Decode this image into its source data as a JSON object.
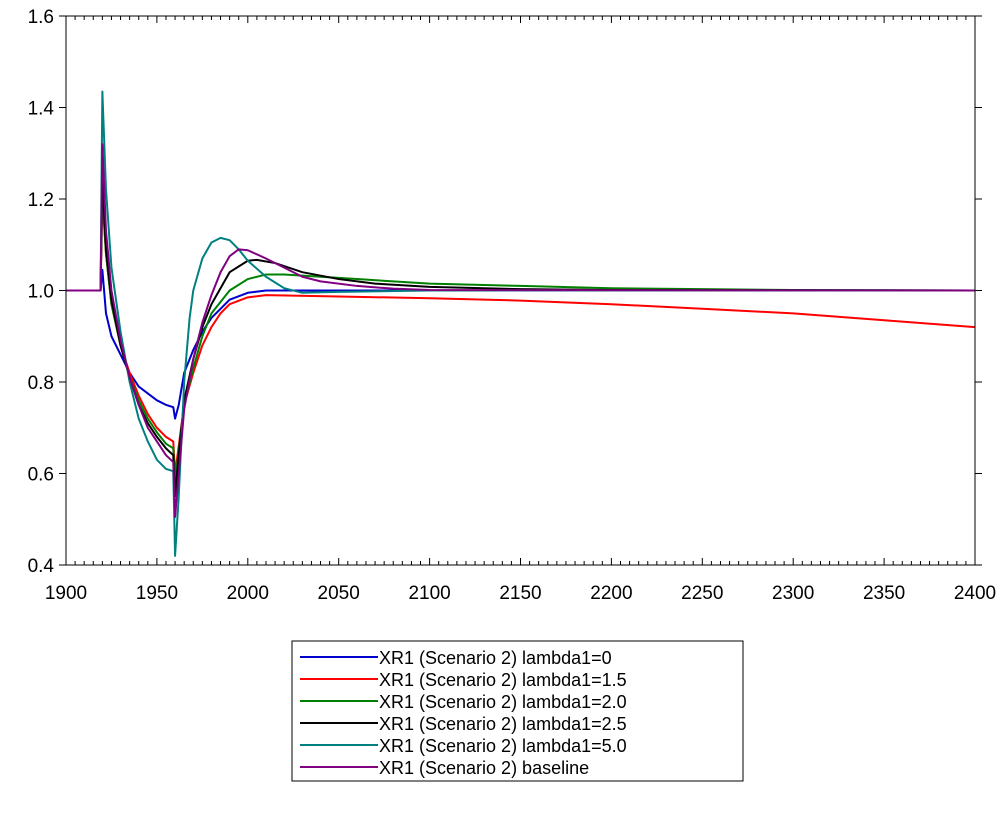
{
  "chart_data": {
    "type": "line",
    "title": "",
    "xlabel": "",
    "ylabel": "",
    "xlim": [
      1900,
      2400
    ],
    "ylim": [
      0.4,
      1.6
    ],
    "x_ticks": [
      "1900",
      "1950",
      "2000",
      "2050",
      "2100",
      "2150",
      "2200",
      "2250",
      "2300",
      "2350",
      "2400"
    ],
    "y_ticks": [
      "0.4",
      "0.6",
      "0.8",
      "1.0",
      "1.2",
      "1.4",
      "1.6"
    ],
    "x_minor_step": 5,
    "grid": false,
    "legend_position": "bottom-center",
    "series": [
      {
        "name": "XR1 (Scenario 2) lambda1=0",
        "color": "#0000cc",
        "points": [
          [
            1900,
            1.0
          ],
          [
            1919,
            1.0
          ],
          [
            1920,
            1.045
          ],
          [
            1922,
            0.95
          ],
          [
            1925,
            0.9
          ],
          [
            1930,
            0.86
          ],
          [
            1935,
            0.82
          ],
          [
            1940,
            0.79
          ],
          [
            1945,
            0.775
          ],
          [
            1950,
            0.76
          ],
          [
            1955,
            0.75
          ],
          [
            1959,
            0.745
          ],
          [
            1960,
            0.72
          ],
          [
            1962,
            0.75
          ],
          [
            1965,
            0.82
          ],
          [
            1970,
            0.87
          ],
          [
            1975,
            0.91
          ],
          [
            1980,
            0.94
          ],
          [
            1985,
            0.96
          ],
          [
            1990,
            0.98
          ],
          [
            2000,
            0.995
          ],
          [
            2010,
            1.0
          ],
          [
            2050,
            1.0
          ],
          [
            2100,
            1.0
          ],
          [
            2200,
            1.0
          ],
          [
            2300,
            1.0
          ],
          [
            2400,
            1.0
          ]
        ]
      },
      {
        "name": "XR1 (Scenario 2) lambda1=1.5",
        "color": "#ff0000",
        "points": [
          [
            1900,
            1.0
          ],
          [
            1919,
            1.0
          ],
          [
            1920,
            1.2
          ],
          [
            1922,
            1.08
          ],
          [
            1925,
            0.97
          ],
          [
            1930,
            0.88
          ],
          [
            1935,
            0.82
          ],
          [
            1940,
            0.77
          ],
          [
            1945,
            0.73
          ],
          [
            1950,
            0.7
          ],
          [
            1955,
            0.68
          ],
          [
            1959,
            0.67
          ],
          [
            1960,
            0.6
          ],
          [
            1962,
            0.66
          ],
          [
            1965,
            0.75
          ],
          [
            1970,
            0.82
          ],
          [
            1975,
            0.88
          ],
          [
            1980,
            0.92
          ],
          [
            1985,
            0.95
          ],
          [
            1990,
            0.97
          ],
          [
            2000,
            0.985
          ],
          [
            2010,
            0.99
          ],
          [
            2050,
            0.987
          ],
          [
            2100,
            0.983
          ],
          [
            2150,
            0.978
          ],
          [
            2200,
            0.97
          ],
          [
            2250,
            0.96
          ],
          [
            2300,
            0.95
          ],
          [
            2350,
            0.935
          ],
          [
            2400,
            0.92
          ]
        ]
      },
      {
        "name": "XR1 (Scenario 2) lambda1=2.0",
        "color": "#008000",
        "points": [
          [
            1900,
            1.0
          ],
          [
            1919,
            1.0
          ],
          [
            1920,
            1.22
          ],
          [
            1922,
            1.08
          ],
          [
            1925,
            0.97
          ],
          [
            1930,
            0.88
          ],
          [
            1935,
            0.81
          ],
          [
            1940,
            0.76
          ],
          [
            1945,
            0.72
          ],
          [
            1950,
            0.69
          ],
          [
            1955,
            0.665
          ],
          [
            1959,
            0.655
          ],
          [
            1960,
            0.58
          ],
          [
            1962,
            0.65
          ],
          [
            1965,
            0.75
          ],
          [
            1970,
            0.83
          ],
          [
            1975,
            0.9
          ],
          [
            1980,
            0.95
          ],
          [
            1990,
            1.0
          ],
          [
            2000,
            1.025
          ],
          [
            2010,
            1.035
          ],
          [
            2020,
            1.035
          ],
          [
            2040,
            1.03
          ],
          [
            2060,
            1.025
          ],
          [
            2080,
            1.02
          ],
          [
            2100,
            1.015
          ],
          [
            2150,
            1.01
          ],
          [
            2200,
            1.005
          ],
          [
            2250,
            1.003
          ],
          [
            2300,
            1.001
          ],
          [
            2400,
            1.0
          ]
        ]
      },
      {
        "name": "XR1 (Scenario 2) lambda1=2.5",
        "color": "#000000",
        "points": [
          [
            1900,
            1.0
          ],
          [
            1919,
            1.0
          ],
          [
            1920,
            1.25
          ],
          [
            1922,
            1.09
          ],
          [
            1925,
            0.98
          ],
          [
            1930,
            0.88
          ],
          [
            1935,
            0.81
          ],
          [
            1940,
            0.75
          ],
          [
            1945,
            0.71
          ],
          [
            1950,
            0.68
          ],
          [
            1955,
            0.655
          ],
          [
            1959,
            0.64
          ],
          [
            1960,
            0.55
          ],
          [
            1962,
            0.64
          ],
          [
            1965,
            0.76
          ],
          [
            1970,
            0.85
          ],
          [
            1975,
            0.92
          ],
          [
            1980,
            0.97
          ],
          [
            1990,
            1.04
          ],
          [
            2000,
            1.065
          ],
          [
            2005,
            1.067
          ],
          [
            2015,
            1.06
          ],
          [
            2030,
            1.04
          ],
          [
            2050,
            1.025
          ],
          [
            2070,
            1.015
          ],
          [
            2100,
            1.008
          ],
          [
            2150,
            1.003
          ],
          [
            2200,
            1.001
          ],
          [
            2400,
            1.0
          ]
        ]
      },
      {
        "name": "XR1 (Scenario 2) lambda1=5.0",
        "color": "#008080",
        "points": [
          [
            1900,
            1.0
          ],
          [
            1919,
            1.0
          ],
          [
            1920,
            1.435
          ],
          [
            1922,
            1.22
          ],
          [
            1925,
            1.05
          ],
          [
            1930,
            0.91
          ],
          [
            1935,
            0.8
          ],
          [
            1940,
            0.72
          ],
          [
            1945,
            0.67
          ],
          [
            1950,
            0.63
          ],
          [
            1955,
            0.61
          ],
          [
            1959,
            0.605
          ],
          [
            1960,
            0.42
          ],
          [
            1962,
            0.55
          ],
          [
            1965,
            0.8
          ],
          [
            1968,
            0.94
          ],
          [
            1970,
            1.0
          ],
          [
            1975,
            1.07
          ],
          [
            1980,
            1.105
          ],
          [
            1985,
            1.115
          ],
          [
            1990,
            1.11
          ],
          [
            1995,
            1.09
          ],
          [
            2000,
            1.065
          ],
          [
            2010,
            1.03
          ],
          [
            2020,
            1.005
          ],
          [
            2030,
            0.995
          ],
          [
            2050,
            0.997
          ],
          [
            2100,
            1.0
          ],
          [
            2400,
            1.0
          ]
        ]
      },
      {
        "name": "XR1 (Scenario 2) baseline",
        "color": "#800080",
        "points": [
          [
            1900,
            1.0
          ],
          [
            1919,
            1.0
          ],
          [
            1920,
            1.32
          ],
          [
            1922,
            1.13
          ],
          [
            1925,
            1.0
          ],
          [
            1930,
            0.89
          ],
          [
            1935,
            0.81
          ],
          [
            1940,
            0.75
          ],
          [
            1945,
            0.7
          ],
          [
            1950,
            0.67
          ],
          [
            1955,
            0.64
          ],
          [
            1959,
            0.625
          ],
          [
            1960,
            0.505
          ],
          [
            1962,
            0.6
          ],
          [
            1965,
            0.74
          ],
          [
            1970,
            0.85
          ],
          [
            1975,
            0.93
          ],
          [
            1980,
            0.99
          ],
          [
            1985,
            1.04
          ],
          [
            1990,
            1.075
          ],
          [
            1995,
            1.09
          ],
          [
            2000,
            1.088
          ],
          [
            2010,
            1.07
          ],
          [
            2020,
            1.05
          ],
          [
            2030,
            1.03
          ],
          [
            2040,
            1.02
          ],
          [
            2060,
            1.01
          ],
          [
            2080,
            1.004
          ],
          [
            2100,
            1.001
          ],
          [
            2400,
            1.0
          ]
        ]
      }
    ]
  }
}
